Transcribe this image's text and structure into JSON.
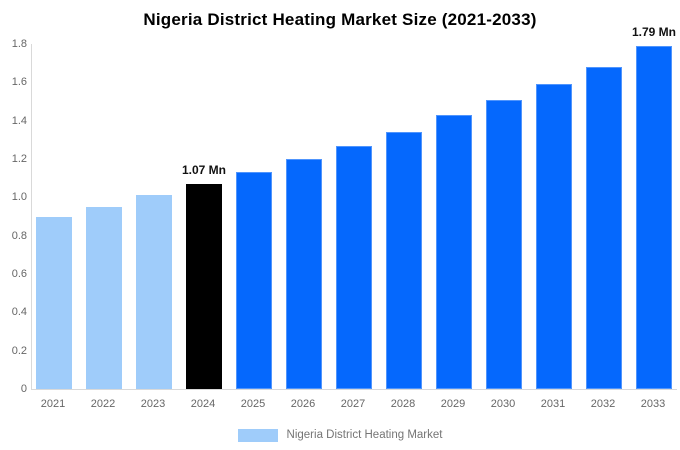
{
  "chart_data": {
    "type": "bar",
    "title": "Nigeria District Heating Market Size (2021-2033)",
    "unit": "Mn",
    "categories": [
      "2021",
      "2022",
      "2023",
      "2024",
      "2025",
      "2026",
      "2027",
      "2028",
      "2029",
      "2030",
      "2031",
      "2032",
      "2033"
    ],
    "values": [
      0.9,
      0.95,
      1.01,
      1.07,
      1.13,
      1.2,
      1.27,
      1.34,
      1.43,
      1.51,
      1.59,
      1.68,
      1.79
    ],
    "bar_styles": [
      "past",
      "past",
      "past",
      "current",
      "forecast",
      "forecast",
      "forecast",
      "forecast",
      "forecast",
      "forecast",
      "forecast",
      "forecast",
      "forecast"
    ],
    "point_labels": [
      null,
      null,
      null,
      "1.07 Mn",
      null,
      null,
      null,
      null,
      null,
      null,
      null,
      null,
      "1.79 Mn"
    ],
    "ylim": [
      0,
      1.8
    ],
    "yticks": [
      "0",
      "0.2",
      "0.4",
      "0.6",
      "0.8",
      "1.0",
      "1.2",
      "1.4",
      "1.6",
      "1.8"
    ],
    "grid": false,
    "legend": {
      "position": "bottom",
      "items": [
        {
          "label": "Nigeria District Heating Market",
          "swatch_color": "#9fccfa"
        }
      ]
    },
    "colors": {
      "past": "#9fccfa",
      "current": "#000000",
      "forecast": "#0568fd",
      "axis_line": "#d9d9d9",
      "tick_text": "#666666",
      "legend_text": "#757575",
      "label_text": "#111111"
    }
  }
}
